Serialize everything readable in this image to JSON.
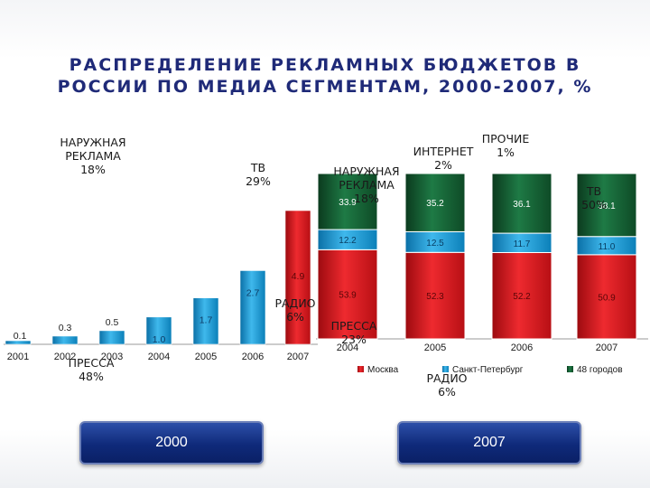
{
  "title_line1": "РАСПРЕДЕЛЕНИЕ РЕКЛАМНЫХ БЮДЖЕТОВ В",
  "title_line2": "РОССИИ ПО МЕДИА СЕГМЕНТАМ, 2000-2007, %",
  "buttons": {
    "left": "2000",
    "right": "2007"
  },
  "colors": {
    "title": "#1f2a78",
    "red": "#d8141b",
    "blue": "#1a9bd7",
    "green": "#145a32"
  },
  "chart_data": [
    {
      "type": "bar",
      "categories": [
        "2001",
        "2002",
        "2003",
        "2004",
        "2005",
        "2006",
        "2007"
      ],
      "values": [
        0.1,
        0.3,
        0.5,
        1.0,
        1.7,
        2.7,
        4.9
      ],
      "data_labels": [
        "0.1",
        "0.3",
        "0.5",
        "1.0",
        "1.7",
        "2.7",
        "4.9"
      ],
      "highlight_last": true,
      "grid": false
    },
    {
      "type": "bar",
      "stacked": true,
      "categories": [
        "2004",
        "2005",
        "2006",
        "2007"
      ],
      "series": [
        {
          "name": "Москва",
          "values": [
            53.9,
            52.3,
            52.2,
            50.9
          ],
          "labels": [
            "53.9",
            "52.3",
            "52.2",
            "50.9"
          ]
        },
        {
          "name": "Санкт-Петербург",
          "values": [
            12.2,
            12.5,
            11.7,
            11.0
          ],
          "labels": [
            "12.2",
            "12.5",
            "11.7",
            "11.0"
          ]
        },
        {
          "name": "48 городов",
          "values": [
            33.9,
            35.2,
            36.1,
            38.1
          ],
          "labels": [
            "33.9",
            "35.2",
            "36.1",
            "38.1"
          ]
        }
      ],
      "legend": "bottom"
    }
  ],
  "overlay_labels": [
    {
      "lines": [
        "НАРУЖНАЯ",
        "РЕКЛАМА",
        "18%"
      ]
    },
    {
      "lines": [
        "ТВ",
        "29%"
      ]
    },
    {
      "lines": [
        "РАДИО",
        "6%"
      ]
    },
    {
      "lines": [
        "ПРЕССА",
        "48%"
      ]
    },
    {
      "lines": [
        "ИНТЕРНЕТ",
        "2%"
      ]
    },
    {
      "lines": [
        "ПРОЧИЕ",
        "1%"
      ]
    },
    {
      "lines": [
        "НАРУЖНАЯ",
        "РЕКЛАМА",
        "18%"
      ]
    },
    {
      "lines": [
        "ТВ",
        "50%"
      ]
    },
    {
      "lines": [
        "ПРЕССА",
        "23%"
      ]
    },
    {
      "lines": [
        "РАДИО",
        "6%"
      ]
    }
  ]
}
